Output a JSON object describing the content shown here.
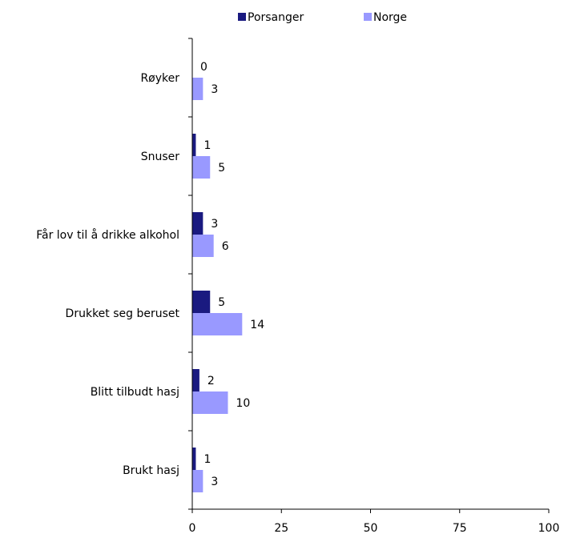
{
  "chart_data": {
    "type": "bar",
    "orientation": "horizontal",
    "categories": [
      "Røyker",
      "Snuser",
      "Får lov til å drikke alkohol",
      "Drukket seg beruset",
      "Blitt tilbudt hasj",
      "Brukt hasj"
    ],
    "series": [
      {
        "name": "Porsanger",
        "color": "#1a1a80",
        "values": [
          0,
          1,
          3,
          5,
          2,
          1
        ]
      },
      {
        "name": "Norge",
        "color": "#9999ff",
        "values": [
          3,
          5,
          6,
          14,
          10,
          3
        ]
      }
    ],
    "xlim": [
      0,
      100
    ],
    "xticks": [
      "0",
      "25",
      "50",
      "75",
      "100"
    ],
    "grid": false,
    "legend": "top"
  }
}
